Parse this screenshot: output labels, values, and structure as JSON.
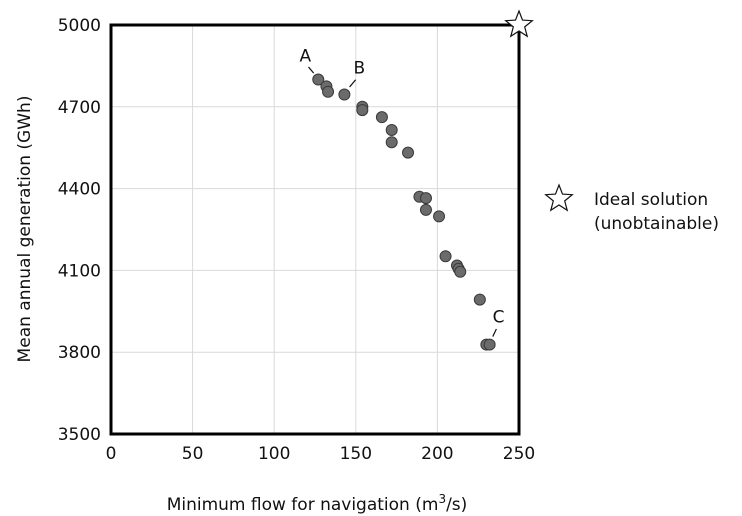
{
  "chart_data": {
    "type": "scatter",
    "xlabel": "Minimum flow for navigation (m",
    "xlabel_sup": "3",
    "xlabel_end": "/s)",
    "ylabel": "Mean annual generation (GWh)",
    "xlim": [
      0,
      250
    ],
    "ylim": [
      3500,
      5000
    ],
    "xticks": [
      0,
      50,
      100,
      150,
      200,
      250
    ],
    "yticks": [
      3500,
      3800,
      4100,
      4400,
      4700,
      5000
    ],
    "grid": true,
    "point_color": "#6b6b6b",
    "points": [
      {
        "x": 127,
        "y": 4800
      },
      {
        "x": 132,
        "y": 4775
      },
      {
        "x": 133,
        "y": 4755
      },
      {
        "x": 143,
        "y": 4745
      },
      {
        "x": 154,
        "y": 4700
      },
      {
        "x": 154,
        "y": 4688
      },
      {
        "x": 166,
        "y": 4662
      },
      {
        "x": 172,
        "y": 4615
      },
      {
        "x": 172,
        "y": 4570
      },
      {
        "x": 182,
        "y": 4532
      },
      {
        "x": 189,
        "y": 4370
      },
      {
        "x": 193,
        "y": 4365
      },
      {
        "x": 193,
        "y": 4322
      },
      {
        "x": 201,
        "y": 4298
      },
      {
        "x": 205,
        "y": 4152
      },
      {
        "x": 212,
        "y": 4118
      },
      {
        "x": 213,
        "y": 4106
      },
      {
        "x": 214,
        "y": 4095
      },
      {
        "x": 226,
        "y": 3993
      },
      {
        "x": 230,
        "y": 3828
      },
      {
        "x": 232,
        "y": 3828
      }
    ],
    "ideal_point": {
      "x": 250,
      "y": 5000
    },
    "annotations": [
      {
        "text": "A",
        "x": 127,
        "y": 4800
      },
      {
        "text": "B",
        "x": 143,
        "y": 4745
      },
      {
        "text": "C",
        "x": 232,
        "y": 3828
      }
    ],
    "legend": {
      "placement": "right",
      "line1": "Ideal solution",
      "line2": "(unobtainable)"
    }
  }
}
